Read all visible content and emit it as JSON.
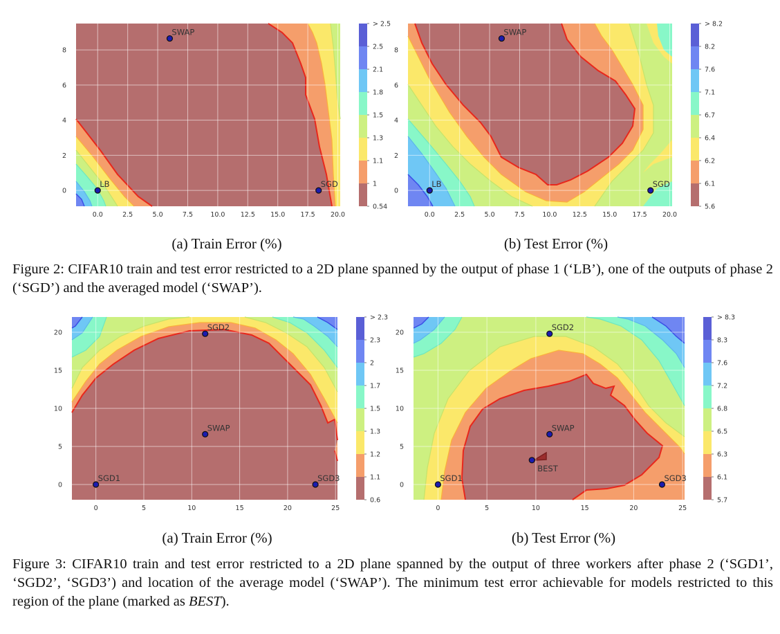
{
  "figure2": {
    "caption_label": "Figure 2:",
    "caption_text": "CIFAR10 train and test error restricted to a 2D plane spanned by the output of phase 1 (‘LB’), one of the outputs of phase 2 (‘SGD’) and the averaged model (‘SWAP’).",
    "subcaption_a": "(a) Train Error (%)",
    "subcaption_b": "(b) Test Error (%)"
  },
  "figure3": {
    "caption_label": "Figure 3:",
    "caption_text_1": "CIFAR10 train and test error restricted to a 2D plane spanned by the output of three workers after phase 2 (‘SGD1’, ‘SGD2’, ‘SGD3’) and location of the average model (‘SWAP’). The minimum test error achievable for models restricted to this region of the plane (marked as ",
    "caption_emph": "BEST",
    "caption_text_2": ").",
    "subcaption_a": "(a) Train Error (%)",
    "subcaption_b": "(b) Test Error (%)"
  },
  "chart_data": [
    {
      "id": "fig2a",
      "type": "contour",
      "xlim": [
        -1.8,
        20.2
      ],
      "ylim": [
        -0.9,
        9.5
      ],
      "xticks": [
        "0.0",
        "2.5",
        "5.0",
        "7.5",
        "10.0",
        "12.5",
        "15.0",
        "17.5",
        "20.0"
      ],
      "xtick_values": [
        0,
        2.5,
        5,
        7.5,
        10,
        12.5,
        15,
        17.5,
        20
      ],
      "yticks": [
        "0",
        "2",
        "4",
        "6",
        "8"
      ],
      "ytick_values": [
        0,
        2,
        4,
        6,
        8
      ],
      "colorbar_labels": [
        "0.54",
        "1",
        "1.1",
        "1.3",
        "1.5",
        "1.8",
        "2.1",
        "2.5",
        "> 2.5"
      ],
      "points": [
        {
          "label": "SWAP",
          "x": 6.0,
          "y": 8.65
        },
        {
          "label": "LB",
          "x": 0.0,
          "y": 0.0
        },
        {
          "label": "SGD",
          "x": 18.4,
          "y": 0.0
        }
      ]
    },
    {
      "id": "fig2b",
      "type": "contour",
      "xlim": [
        -1.8,
        20.2
      ],
      "ylim": [
        -0.9,
        9.5
      ],
      "xticks": [
        "0.0",
        "2.5",
        "5.0",
        "7.5",
        "10.0",
        "12.5",
        "15.0",
        "17.5",
        "20.0"
      ],
      "xtick_values": [
        0,
        2.5,
        5,
        7.5,
        10,
        12.5,
        15,
        17.5,
        20
      ],
      "yticks": [
        "0",
        "2",
        "4",
        "6",
        "8"
      ],
      "ytick_values": [
        0,
        2,
        4,
        6,
        8
      ],
      "colorbar_labels": [
        "5.6",
        "6.1",
        "6.2",
        "6.4",
        "6.7",
        "7.1",
        "7.6",
        "8.2",
        "> 8.2"
      ],
      "points": [
        {
          "label": "SWAP",
          "x": 6.0,
          "y": 8.65
        },
        {
          "label": "LB",
          "x": 0.0,
          "y": 0.0
        },
        {
          "label": "SGD",
          "x": 18.4,
          "y": 0.0
        }
      ]
    },
    {
      "id": "fig3a",
      "type": "contour",
      "xlim": [
        -2.5,
        25.2
      ],
      "ylim": [
        -2,
        22
      ],
      "xticks": [
        "0",
        "5",
        "10",
        "15",
        "20",
        "25"
      ],
      "xtick_values": [
        0,
        5,
        10,
        15,
        20,
        25
      ],
      "yticks": [
        "0",
        "5",
        "10",
        "15",
        "20"
      ],
      "ytick_values": [
        0,
        5,
        10,
        15,
        20
      ],
      "colorbar_labels": [
        "0.6",
        "1.1",
        "1.2",
        "1.3",
        "1.5",
        "1.7",
        "2",
        "2.3",
        "> 2.3"
      ],
      "points": [
        {
          "label": "SGD2",
          "x": 11.4,
          "y": 19.8
        },
        {
          "label": "SWAP",
          "x": 11.4,
          "y": 6.6
        },
        {
          "label": "SGD1",
          "x": 0.0,
          "y": 0.0
        },
        {
          "label": "SGD3",
          "x": 22.9,
          "y": 0.0
        }
      ]
    },
    {
      "id": "fig3b",
      "type": "contour",
      "xlim": [
        -2.5,
        25.2
      ],
      "ylim": [
        -2,
        22
      ],
      "xticks": [
        "0",
        "5",
        "10",
        "15",
        "20",
        "25"
      ],
      "xtick_values": [
        0,
        5,
        10,
        15,
        20,
        25
      ],
      "yticks": [
        "0",
        "5",
        "10",
        "15",
        "20"
      ],
      "ytick_values": [
        0,
        5,
        10,
        15,
        20
      ],
      "colorbar_labels": [
        "5.7",
        "6.1",
        "6.3",
        "6.5",
        "6.8",
        "7.2",
        "7.6",
        "8.3",
        "> 8.3"
      ],
      "points": [
        {
          "label": "SGD2",
          "x": 11.4,
          "y": 19.8
        },
        {
          "label": "SWAP",
          "x": 11.4,
          "y": 6.6
        },
        {
          "label": "BEST",
          "x": 9.6,
          "y": 3.2
        },
        {
          "label": "SGD1",
          "x": 0.0,
          "y": 0.0
        },
        {
          "label": "SGD3",
          "x": 22.9,
          "y": 0.0
        }
      ]
    }
  ],
  "palette": {
    "levels": [
      "#b56e6e",
      "#f59e6b",
      "#fbe86a",
      "#cdf081",
      "#88f7c8",
      "#6fc7f5",
      "#6f86f2",
      "#5a5fd6",
      "#6c6cb8"
    ],
    "contour_line": "#e8271c",
    "grid": "#ffffff",
    "marker_fill": "#1b1bb0"
  }
}
